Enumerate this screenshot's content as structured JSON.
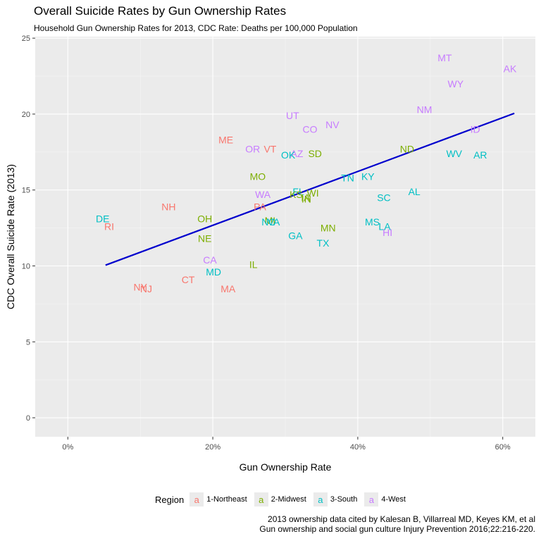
{
  "title": "Overall Suicide Rates by Gun Ownership Rates",
  "subtitle": "Household Gun Ownership Rates for 2013, CDC Rate: Deaths per 100,000 Population",
  "caption": [
    "2013 ownership data cited by Kalesan B, Villarreal MD, Keyes KM, et al",
    "Gun ownership and social gun culture Injury Prevention 2016;22:216-220."
  ],
  "legend": {
    "title": "Region",
    "key_glyph": "a",
    "items": [
      {
        "label": "1-Northeast",
        "color": "#F8766D"
      },
      {
        "label": "2-Midwest",
        "color": "#7CAE00"
      },
      {
        "label": "3-South",
        "color": "#00BFC4"
      },
      {
        "label": "4-West",
        "color": "#C77CFF"
      }
    ]
  },
  "chart_data": {
    "type": "scatter",
    "title": "Overall Suicide Rates by Gun Ownership Rates",
    "subtitle": "Household Gun Ownership Rates for 2013, CDC Rate: Deaths per 100,000 Population",
    "xlabel": "Gun Ownership Rate",
    "ylabel": "CDC Overall Suicide Rate (2013)",
    "xlim": [
      -0.045,
      0.645
    ],
    "ylim": [
      -1.25,
      25.1
    ],
    "x_ticks": [
      0,
      0.2,
      0.4,
      0.6
    ],
    "x_tick_labels": [
      "0%",
      "20%",
      "40%",
      "60%"
    ],
    "y_ticks": [
      0,
      5,
      10,
      15,
      20,
      25
    ],
    "y_tick_labels": [
      "0",
      "5",
      "10",
      "15",
      "20",
      "25"
    ],
    "grid": true,
    "background": "#EBEBEB",
    "legend_position": "bottom",
    "regions": {
      "1-Northeast": "#F8766D",
      "2-Midwest": "#7CAE00",
      "3-South": "#00BFC4",
      "4-West": "#C77CFF"
    },
    "points": [
      {
        "label": "MT",
        "x": 0.52,
        "y": 23.7,
        "region": "4-West"
      },
      {
        "label": "AK",
        "x": 0.61,
        "y": 23.0,
        "region": "4-West"
      },
      {
        "label": "WY",
        "x": 0.535,
        "y": 22.0,
        "region": "4-West"
      },
      {
        "label": "NM",
        "x": 0.492,
        "y": 20.3,
        "region": "4-West"
      },
      {
        "label": "UT",
        "x": 0.31,
        "y": 19.9,
        "region": "4-West"
      },
      {
        "label": "NV",
        "x": 0.365,
        "y": 19.3,
        "region": "4-West"
      },
      {
        "label": "CO",
        "x": 0.334,
        "y": 19.0,
        "region": "4-West"
      },
      {
        "label": "ID",
        "x": 0.562,
        "y": 19.0,
        "region": "4-West"
      },
      {
        "label": "ME",
        "x": 0.218,
        "y": 18.3,
        "region": "1-Northeast"
      },
      {
        "label": "OR",
        "x": 0.255,
        "y": 17.7,
        "region": "4-West"
      },
      {
        "label": "VT",
        "x": 0.279,
        "y": 17.7,
        "region": "1-Northeast"
      },
      {
        "label": "ND",
        "x": 0.468,
        "y": 17.7,
        "region": "2-Midwest"
      },
      {
        "label": "AZ",
        "x": 0.316,
        "y": 17.4,
        "region": "4-West"
      },
      {
        "label": "SD",
        "x": 0.341,
        "y": 17.4,
        "region": "2-Midwest"
      },
      {
        "label": "WV",
        "x": 0.533,
        "y": 17.4,
        "region": "3-South"
      },
      {
        "label": "OK",
        "x": 0.304,
        "y": 17.3,
        "region": "3-South"
      },
      {
        "label": "AR",
        "x": 0.569,
        "y": 17.3,
        "region": "3-South"
      },
      {
        "label": "MO",
        "x": 0.262,
        "y": 15.9,
        "region": "2-Midwest"
      },
      {
        "label": "TN",
        "x": 0.386,
        "y": 15.8,
        "region": "3-South"
      },
      {
        "label": "KY",
        "x": 0.414,
        "y": 15.9,
        "region": "3-South"
      },
      {
        "label": "AL",
        "x": 0.478,
        "y": 14.9,
        "region": "3-South"
      },
      {
        "label": "FL",
        "x": 0.318,
        "y": 14.9,
        "region": "3-South"
      },
      {
        "label": "WI",
        "x": 0.338,
        "y": 14.8,
        "region": "2-Midwest"
      },
      {
        "label": "WA",
        "x": 0.269,
        "y": 14.7,
        "region": "4-West"
      },
      {
        "label": "KS",
        "x": 0.315,
        "y": 14.7,
        "region": "2-Midwest"
      },
      {
        "label": "SC",
        "x": 0.436,
        "y": 14.5,
        "region": "3-South"
      },
      {
        "label": "IA",
        "x": 0.328,
        "y": 14.5,
        "region": "2-Midwest"
      },
      {
        "label": "IN",
        "x": 0.329,
        "y": 14.4,
        "region": "2-Midwest"
      },
      {
        "label": "NH",
        "x": 0.139,
        "y": 13.9,
        "region": "1-Northeast"
      },
      {
        "label": "PA",
        "x": 0.265,
        "y": 13.9,
        "region": "1-Northeast"
      },
      {
        "label": "DE",
        "x": 0.048,
        "y": 13.1,
        "region": "3-South"
      },
      {
        "label": "OH",
        "x": 0.189,
        "y": 13.1,
        "region": "2-Midwest"
      },
      {
        "label": "MI",
        "x": 0.279,
        "y": 13.0,
        "region": "2-Midwest"
      },
      {
        "label": "NC",
        "x": 0.277,
        "y": 12.9,
        "region": "3-South"
      },
      {
        "label": "VA",
        "x": 0.284,
        "y": 12.9,
        "region": "3-South"
      },
      {
        "label": "MS",
        "x": 0.42,
        "y": 12.9,
        "region": "3-South"
      },
      {
        "label": "RI",
        "x": 0.057,
        "y": 12.6,
        "region": "1-Northeast"
      },
      {
        "label": "LA",
        "x": 0.437,
        "y": 12.6,
        "region": "3-South"
      },
      {
        "label": "MN",
        "x": 0.359,
        "y": 12.5,
        "region": "2-Midwest"
      },
      {
        "label": "HI",
        "x": 0.441,
        "y": 12.2,
        "region": "4-West"
      },
      {
        "label": "GA",
        "x": 0.314,
        "y": 12.0,
        "region": "3-South"
      },
      {
        "label": "NE",
        "x": 0.189,
        "y": 11.8,
        "region": "2-Midwest"
      },
      {
        "label": "TX",
        "x": 0.352,
        "y": 11.5,
        "region": "3-South"
      },
      {
        "label": "CA",
        "x": 0.196,
        "y": 10.4,
        "region": "4-West"
      },
      {
        "label": "IL",
        "x": 0.256,
        "y": 10.1,
        "region": "2-Midwest"
      },
      {
        "label": "MD",
        "x": 0.201,
        "y": 9.6,
        "region": "3-South"
      },
      {
        "label": "CT",
        "x": 0.166,
        "y": 9.1,
        "region": "1-Northeast"
      },
      {
        "label": "NY",
        "x": 0.1,
        "y": 8.6,
        "region": "1-Northeast"
      },
      {
        "label": "NJ",
        "x": 0.108,
        "y": 8.5,
        "region": "1-Northeast"
      },
      {
        "label": "MA",
        "x": 0.221,
        "y": 8.5,
        "region": "1-Northeast"
      }
    ],
    "trend_line": {
      "color": "#0000CD",
      "points": [
        {
          "x": 0.052,
          "y": 10.05
        },
        {
          "x": 0.616,
          "y": 20.05
        }
      ]
    }
  }
}
